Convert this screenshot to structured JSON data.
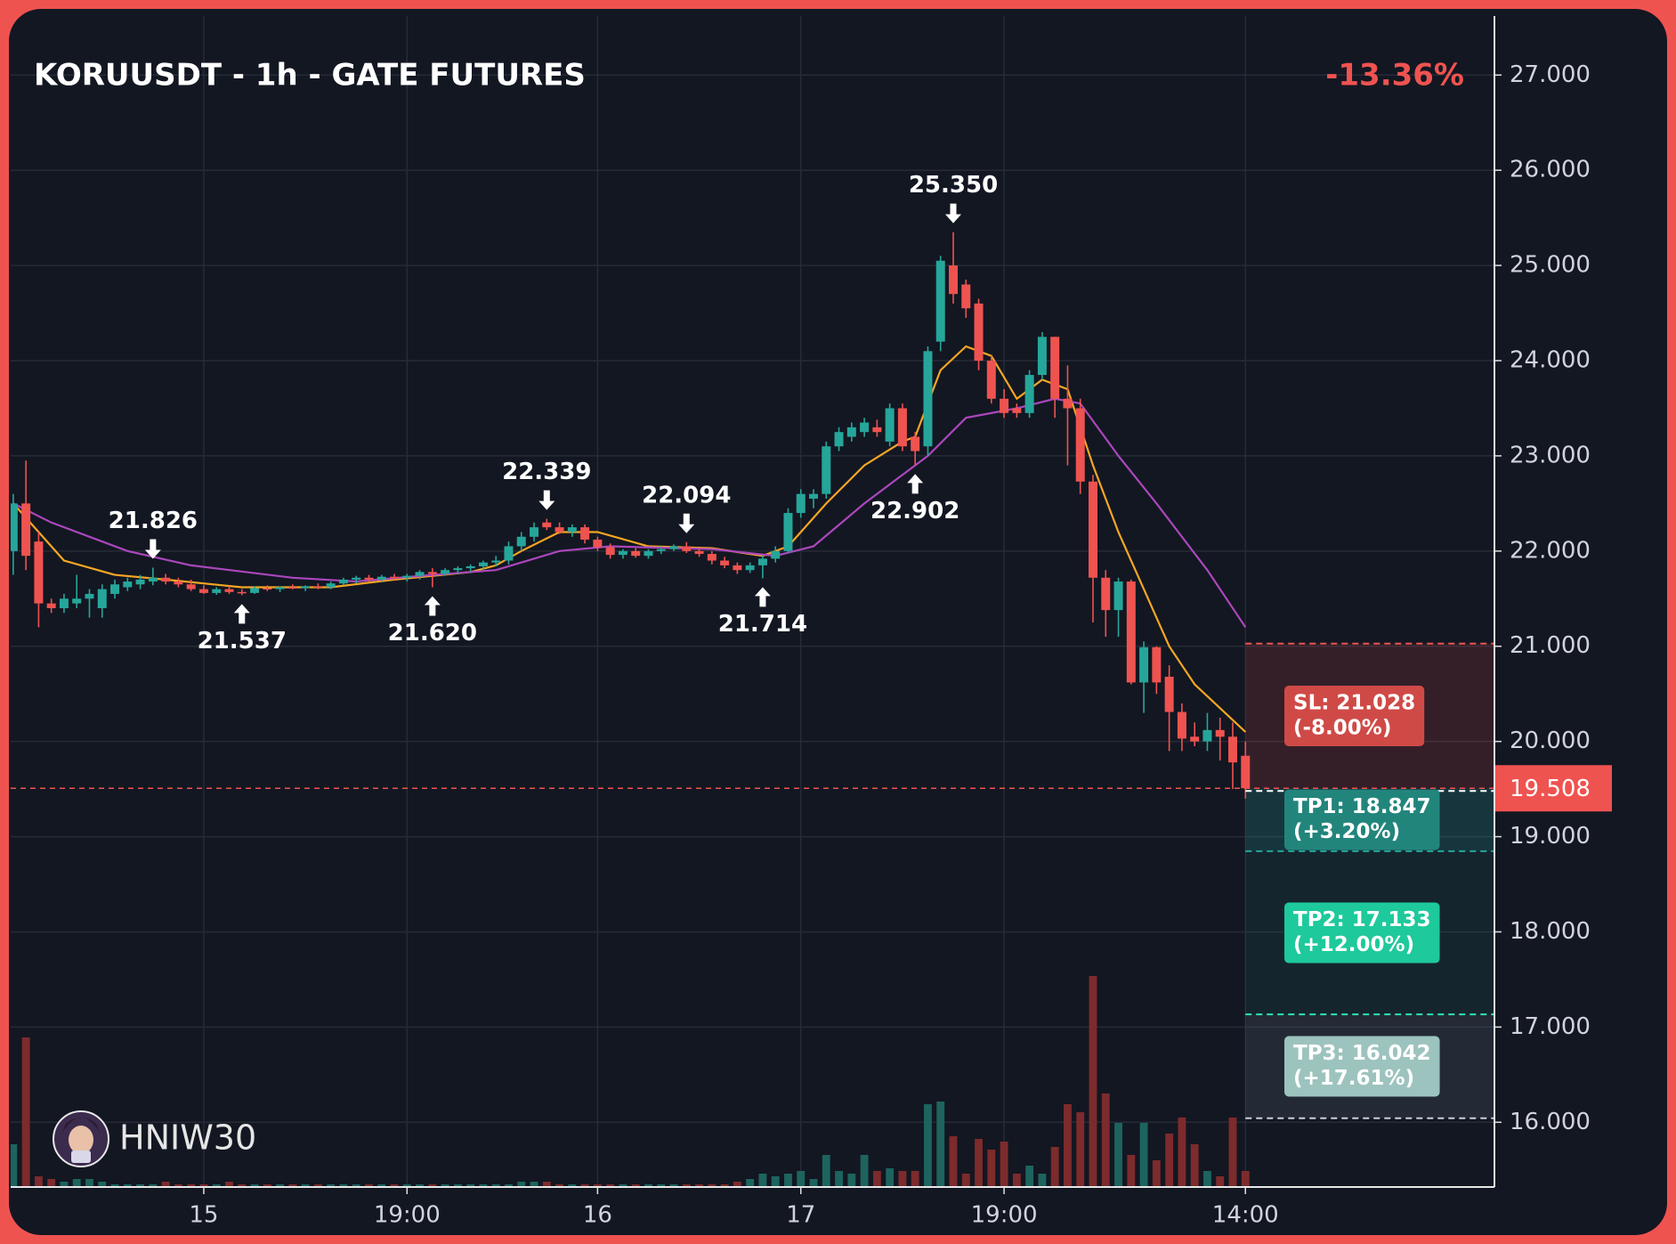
{
  "chart_data": {
    "type": "candlestick",
    "title": "KORUUSDT - 1h - GATE FUTURES",
    "change_label": "-13.36%",
    "watermark": "HNIW30",
    "up_color": "#26a69a",
    "down_color": "#ef5350",
    "volume_up_color": "#1d645e",
    "volume_down_color": "#7d2b2c",
    "grid": true,
    "xlim": [
      -0.2,
      116.6
    ],
    "ylim": [
      15.32,
      27.62
    ],
    "y2lim": [
      0,
      100
    ],
    "xticks": [
      {
        "value": 15,
        "label": "15"
      },
      {
        "value": 31,
        "label": "19:00"
      },
      {
        "value": 46,
        "label": "16"
      },
      {
        "value": 62,
        "label": "17"
      },
      {
        "value": 78,
        "label": "19:00"
      },
      {
        "value": 97,
        "label": "14:00"
      }
    ],
    "yticks": [
      {
        "value": 16,
        "label": "16.000"
      },
      {
        "value": 17,
        "label": "17.000"
      },
      {
        "value": 18,
        "label": "18.000"
      },
      {
        "value": 19,
        "label": "19.000"
      },
      {
        "value": 20,
        "label": "20.000"
      },
      {
        "value": 21,
        "label": "21.000"
      },
      {
        "value": 22,
        "label": "22.000"
      },
      {
        "value": 23,
        "label": "23.000"
      },
      {
        "value": 24,
        "label": "24.000"
      },
      {
        "value": 25,
        "label": "25.000"
      },
      {
        "value": 26,
        "label": "26.000"
      },
      {
        "value": 27,
        "label": "27.000"
      }
    ],
    "candles": [
      [
        22.0,
        22.6,
        21.75,
        22.5
      ],
      [
        22.5,
        22.95,
        21.8,
        21.95
      ],
      [
        22.1,
        22.2,
        21.2,
        21.45
      ],
      [
        21.45,
        21.5,
        21.35,
        21.4
      ],
      [
        21.4,
        21.55,
        21.35,
        21.5
      ],
      [
        21.45,
        21.75,
        21.4,
        21.5
      ],
      [
        21.5,
        21.6,
        21.3,
        21.55
      ],
      [
        21.4,
        21.65,
        21.3,
        21.6
      ],
      [
        21.55,
        21.7,
        21.5,
        21.65
      ],
      [
        21.62,
        21.72,
        21.58,
        21.68
      ],
      [
        21.65,
        21.75,
        21.6,
        21.7
      ],
      [
        21.68,
        21.826,
        21.64,
        21.72
      ],
      [
        21.72,
        21.76,
        21.65,
        21.68
      ],
      [
        21.68,
        21.72,
        21.62,
        21.65
      ],
      [
        21.65,
        21.7,
        21.58,
        21.6
      ],
      [
        21.6,
        21.64,
        21.55,
        21.56
      ],
      [
        21.56,
        21.62,
        21.54,
        21.6
      ],
      [
        21.6,
        21.63,
        21.55,
        21.57
      ],
      [
        21.57,
        21.6,
        21.537,
        21.56
      ],
      [
        21.56,
        21.63,
        21.55,
        21.61
      ],
      [
        21.61,
        21.64,
        21.58,
        21.6
      ],
      [
        21.6,
        21.63,
        21.57,
        21.62
      ],
      [
        21.62,
        21.65,
        21.6,
        21.61
      ],
      [
        21.61,
        21.64,
        21.58,
        21.63
      ],
      [
        21.63,
        21.66,
        21.6,
        21.62
      ],
      [
        21.62,
        21.68,
        21.6,
        21.66
      ],
      [
        21.66,
        21.72,
        21.64,
        21.7
      ],
      [
        21.7,
        21.74,
        21.66,
        21.72
      ],
      [
        21.72,
        21.75,
        21.68,
        21.7
      ],
      [
        21.7,
        21.75,
        21.67,
        21.73
      ],
      [
        21.73,
        21.76,
        21.7,
        21.72
      ],
      [
        21.72,
        21.76,
        21.68,
        21.74
      ],
      [
        21.74,
        21.8,
        21.7,
        21.78
      ],
      [
        21.78,
        21.82,
        21.62,
        21.76
      ],
      [
        21.76,
        21.82,
        21.74,
        21.8
      ],
      [
        21.8,
        21.84,
        21.76,
        21.82
      ],
      [
        21.82,
        21.86,
        21.78,
        21.84
      ],
      [
        21.84,
        21.9,
        21.8,
        21.88
      ],
      [
        21.88,
        21.95,
        21.84,
        21.9
      ],
      [
        21.9,
        22.1,
        21.86,
        22.05
      ],
      [
        22.05,
        22.2,
        22.0,
        22.15
      ],
      [
        22.15,
        22.3,
        22.1,
        22.25
      ],
      [
        22.3,
        22.339,
        22.22,
        22.25
      ],
      [
        22.25,
        22.3,
        22.18,
        22.2
      ],
      [
        22.2,
        22.28,
        22.15,
        22.25
      ],
      [
        22.25,
        22.28,
        22.08,
        22.12
      ],
      [
        22.12,
        22.15,
        22.0,
        22.04
      ],
      [
        22.04,
        22.08,
        21.92,
        21.96
      ],
      [
        21.96,
        22.02,
        21.92,
        22.0
      ],
      [
        22.0,
        22.03,
        21.93,
        21.95
      ],
      [
        21.95,
        22.02,
        21.92,
        22.0
      ],
      [
        22.0,
        22.05,
        21.97,
        22.02
      ],
      [
        22.02,
        22.07,
        22.0,
        22.05
      ],
      [
        22.05,
        22.094,
        21.98,
        22.0
      ],
      [
        22.0,
        22.03,
        21.94,
        21.97
      ],
      [
        21.97,
        22.0,
        21.86,
        21.9
      ],
      [
        21.9,
        21.94,
        21.82,
        21.85
      ],
      [
        21.85,
        21.88,
        21.76,
        21.8
      ],
      [
        21.8,
        21.88,
        21.77,
        21.85
      ],
      [
        21.85,
        21.95,
        21.714,
        21.92
      ],
      [
        21.92,
        22.05,
        21.88,
        22.0
      ],
      [
        22.0,
        22.45,
        21.98,
        22.4
      ],
      [
        22.4,
        22.65,
        22.35,
        22.6
      ],
      [
        22.55,
        22.65,
        22.45,
        22.6
      ],
      [
        22.6,
        23.15,
        22.55,
        23.1
      ],
      [
        23.1,
        23.3,
        23.05,
        23.25
      ],
      [
        23.2,
        23.35,
        23.15,
        23.3
      ],
      [
        23.25,
        23.4,
        23.2,
        23.35
      ],
      [
        23.3,
        23.38,
        23.2,
        23.25
      ],
      [
        23.15,
        23.55,
        23.1,
        23.5
      ],
      [
        23.5,
        23.55,
        23.05,
        23.1
      ],
      [
        23.2,
        23.25,
        22.902,
        23.05
      ],
      [
        23.1,
        24.15,
        23.0,
        24.1
      ],
      [
        24.2,
        25.1,
        24.1,
        25.05
      ],
      [
        25.0,
        25.35,
        24.6,
        24.7
      ],
      [
        24.8,
        24.85,
        24.45,
        24.55
      ],
      [
        24.6,
        24.65,
        23.9,
        24.0
      ],
      [
        24.0,
        24.05,
        23.55,
        23.6
      ],
      [
        23.6,
        23.7,
        23.4,
        23.45
      ],
      [
        23.5,
        23.55,
        23.4,
        23.45
      ],
      [
        23.45,
        23.9,
        23.4,
        23.85
      ],
      [
        23.85,
        24.3,
        23.8,
        24.25
      ],
      [
        24.25,
        24.25,
        23.4,
        23.6
      ],
      [
        23.6,
        23.95,
        22.9,
        23.5
      ],
      [
        23.5,
        23.6,
        22.6,
        22.73
      ],
      [
        22.73,
        22.8,
        21.25,
        21.72
      ],
      [
        21.72,
        21.8,
        21.1,
        21.38
      ],
      [
        21.38,
        21.72,
        21.1,
        21.68
      ],
      [
        21.68,
        21.7,
        20.6,
        20.62
      ],
      [
        20.62,
        21.05,
        20.3,
        20.99
      ],
      [
        20.99,
        21.0,
        20.5,
        20.62
      ],
      [
        20.68,
        20.8,
        19.9,
        20.31
      ],
      [
        20.31,
        20.4,
        19.9,
        20.03
      ],
      [
        20.05,
        20.2,
        19.95,
        20.0
      ],
      [
        20.0,
        20.3,
        19.9,
        20.12
      ],
      [
        20.12,
        20.25,
        19.8,
        20.05
      ],
      [
        20.05,
        20.2,
        19.5,
        19.78
      ],
      [
        19.85,
        20.0,
        19.4,
        19.508
      ]
    ],
    "volume": [
      16,
      56,
      4,
      3,
      2,
      3,
      3,
      2,
      1,
      1,
      1,
      1,
      2,
      1,
      1,
      1,
      1,
      2,
      1,
      1,
      1,
      1,
      1,
      1,
      1,
      1,
      1,
      1,
      1,
      1,
      1,
      1,
      1,
      1,
      1,
      1,
      1,
      1,
      1,
      1,
      2,
      2,
      2,
      1,
      1,
      1,
      1,
      1,
      1,
      1,
      1,
      1,
      1,
      1,
      1,
      1,
      1,
      2,
      3,
      5,
      4,
      5,
      6,
      3,
      12,
      6,
      5,
      12,
      6,
      7,
      6,
      6,
      31,
      32,
      19,
      5,
      18,
      14,
      17,
      5,
      8,
      5,
      15,
      31,
      28,
      79,
      35,
      24,
      12,
      24,
      10,
      20,
      26,
      16,
      6,
      4,
      26,
      6
    ],
    "lines": [
      {
        "color": "#f5a623",
        "x": [
          0,
          2,
          4,
          8,
          12,
          18,
          25,
          30,
          36,
          38,
          40,
          43,
          46,
          50,
          55,
          59,
          61,
          64,
          67,
          70,
          71,
          73,
          75,
          77,
          79,
          81,
          83,
          85,
          87,
          89,
          91,
          93,
          95,
          97
        ],
        "values": [
          22.5,
          22.2,
          21.9,
          21.75,
          21.7,
          21.62,
          21.62,
          21.7,
          21.78,
          21.85,
          22.0,
          22.2,
          22.2,
          22.05,
          22.03,
          21.95,
          22.05,
          22.5,
          22.9,
          23.15,
          23.2,
          23.9,
          24.15,
          24.05,
          23.6,
          23.8,
          23.7,
          22.9,
          22.2,
          21.6,
          21.0,
          20.6,
          20.35,
          20.1
        ]
      },
      {
        "color": "#ab47bc",
        "x": [
          0,
          3,
          9,
          14,
          22,
          27,
          33,
          38,
          43,
          47,
          55,
          60,
          63,
          67,
          70,
          72,
          75,
          79,
          82,
          84,
          87,
          90,
          94,
          97
        ],
        "values": [
          22.5,
          22.3,
          22.0,
          21.85,
          21.72,
          21.68,
          21.75,
          21.8,
          22.0,
          22.05,
          22.02,
          21.95,
          22.05,
          22.5,
          22.8,
          23.0,
          23.4,
          23.5,
          23.6,
          23.55,
          23.0,
          22.5,
          21.8,
          21.2
        ]
      }
    ],
    "annotations": [
      {
        "x": 11,
        "value": 21.826,
        "label": "21.826",
        "kind": "high"
      },
      {
        "x": 18,
        "value": 21.537,
        "label": "21.537",
        "kind": "low"
      },
      {
        "x": 33,
        "value": 21.62,
        "label": "21.620",
        "kind": "low"
      },
      {
        "x": 42,
        "value": 22.339,
        "label": "22.339",
        "kind": "high"
      },
      {
        "x": 53,
        "value": 22.094,
        "label": "22.094",
        "kind": "high"
      },
      {
        "x": 59,
        "value": 21.714,
        "label": "21.714",
        "kind": "low"
      },
      {
        "x": 71,
        "value": 22.902,
        "label": "22.902",
        "kind": "low"
      },
      {
        "x": 74,
        "value": 25.35,
        "label": "25.350",
        "kind": "high"
      }
    ],
    "last_price": 19.508,
    "last_price_color": "#ef5350",
    "levels": [
      {
        "label": "SL: 21.028",
        "note": "(-8.00%)",
        "value": 21.028,
        "line_color": "#ef5350",
        "zone_color": "rgba(239,83,80,0.15)",
        "box_color": "#cf4a47"
      },
      {
        "label": "TP1: 18.847",
        "note": "(+3.20%)",
        "value": 18.847,
        "line_color": "#26a69a",
        "zone_color": "rgba(38,166,154,0.22)",
        "box_color": "#22857c"
      },
      {
        "label": "TP2: 17.133",
        "note": "(+12.00%)",
        "value": 17.133,
        "line_color": "#2ee6b0",
        "zone_color": "rgba(38,166,154,0.10)",
        "box_color": "#1ec99b"
      },
      {
        "label": "TP3: 16.042",
        "note": "(+17.61%)",
        "value": 16.042,
        "line_color": "#c8d0d8",
        "zone_color": "rgba(160,175,195,0.12)",
        "box_color": "#9dc3be"
      }
    ]
  }
}
